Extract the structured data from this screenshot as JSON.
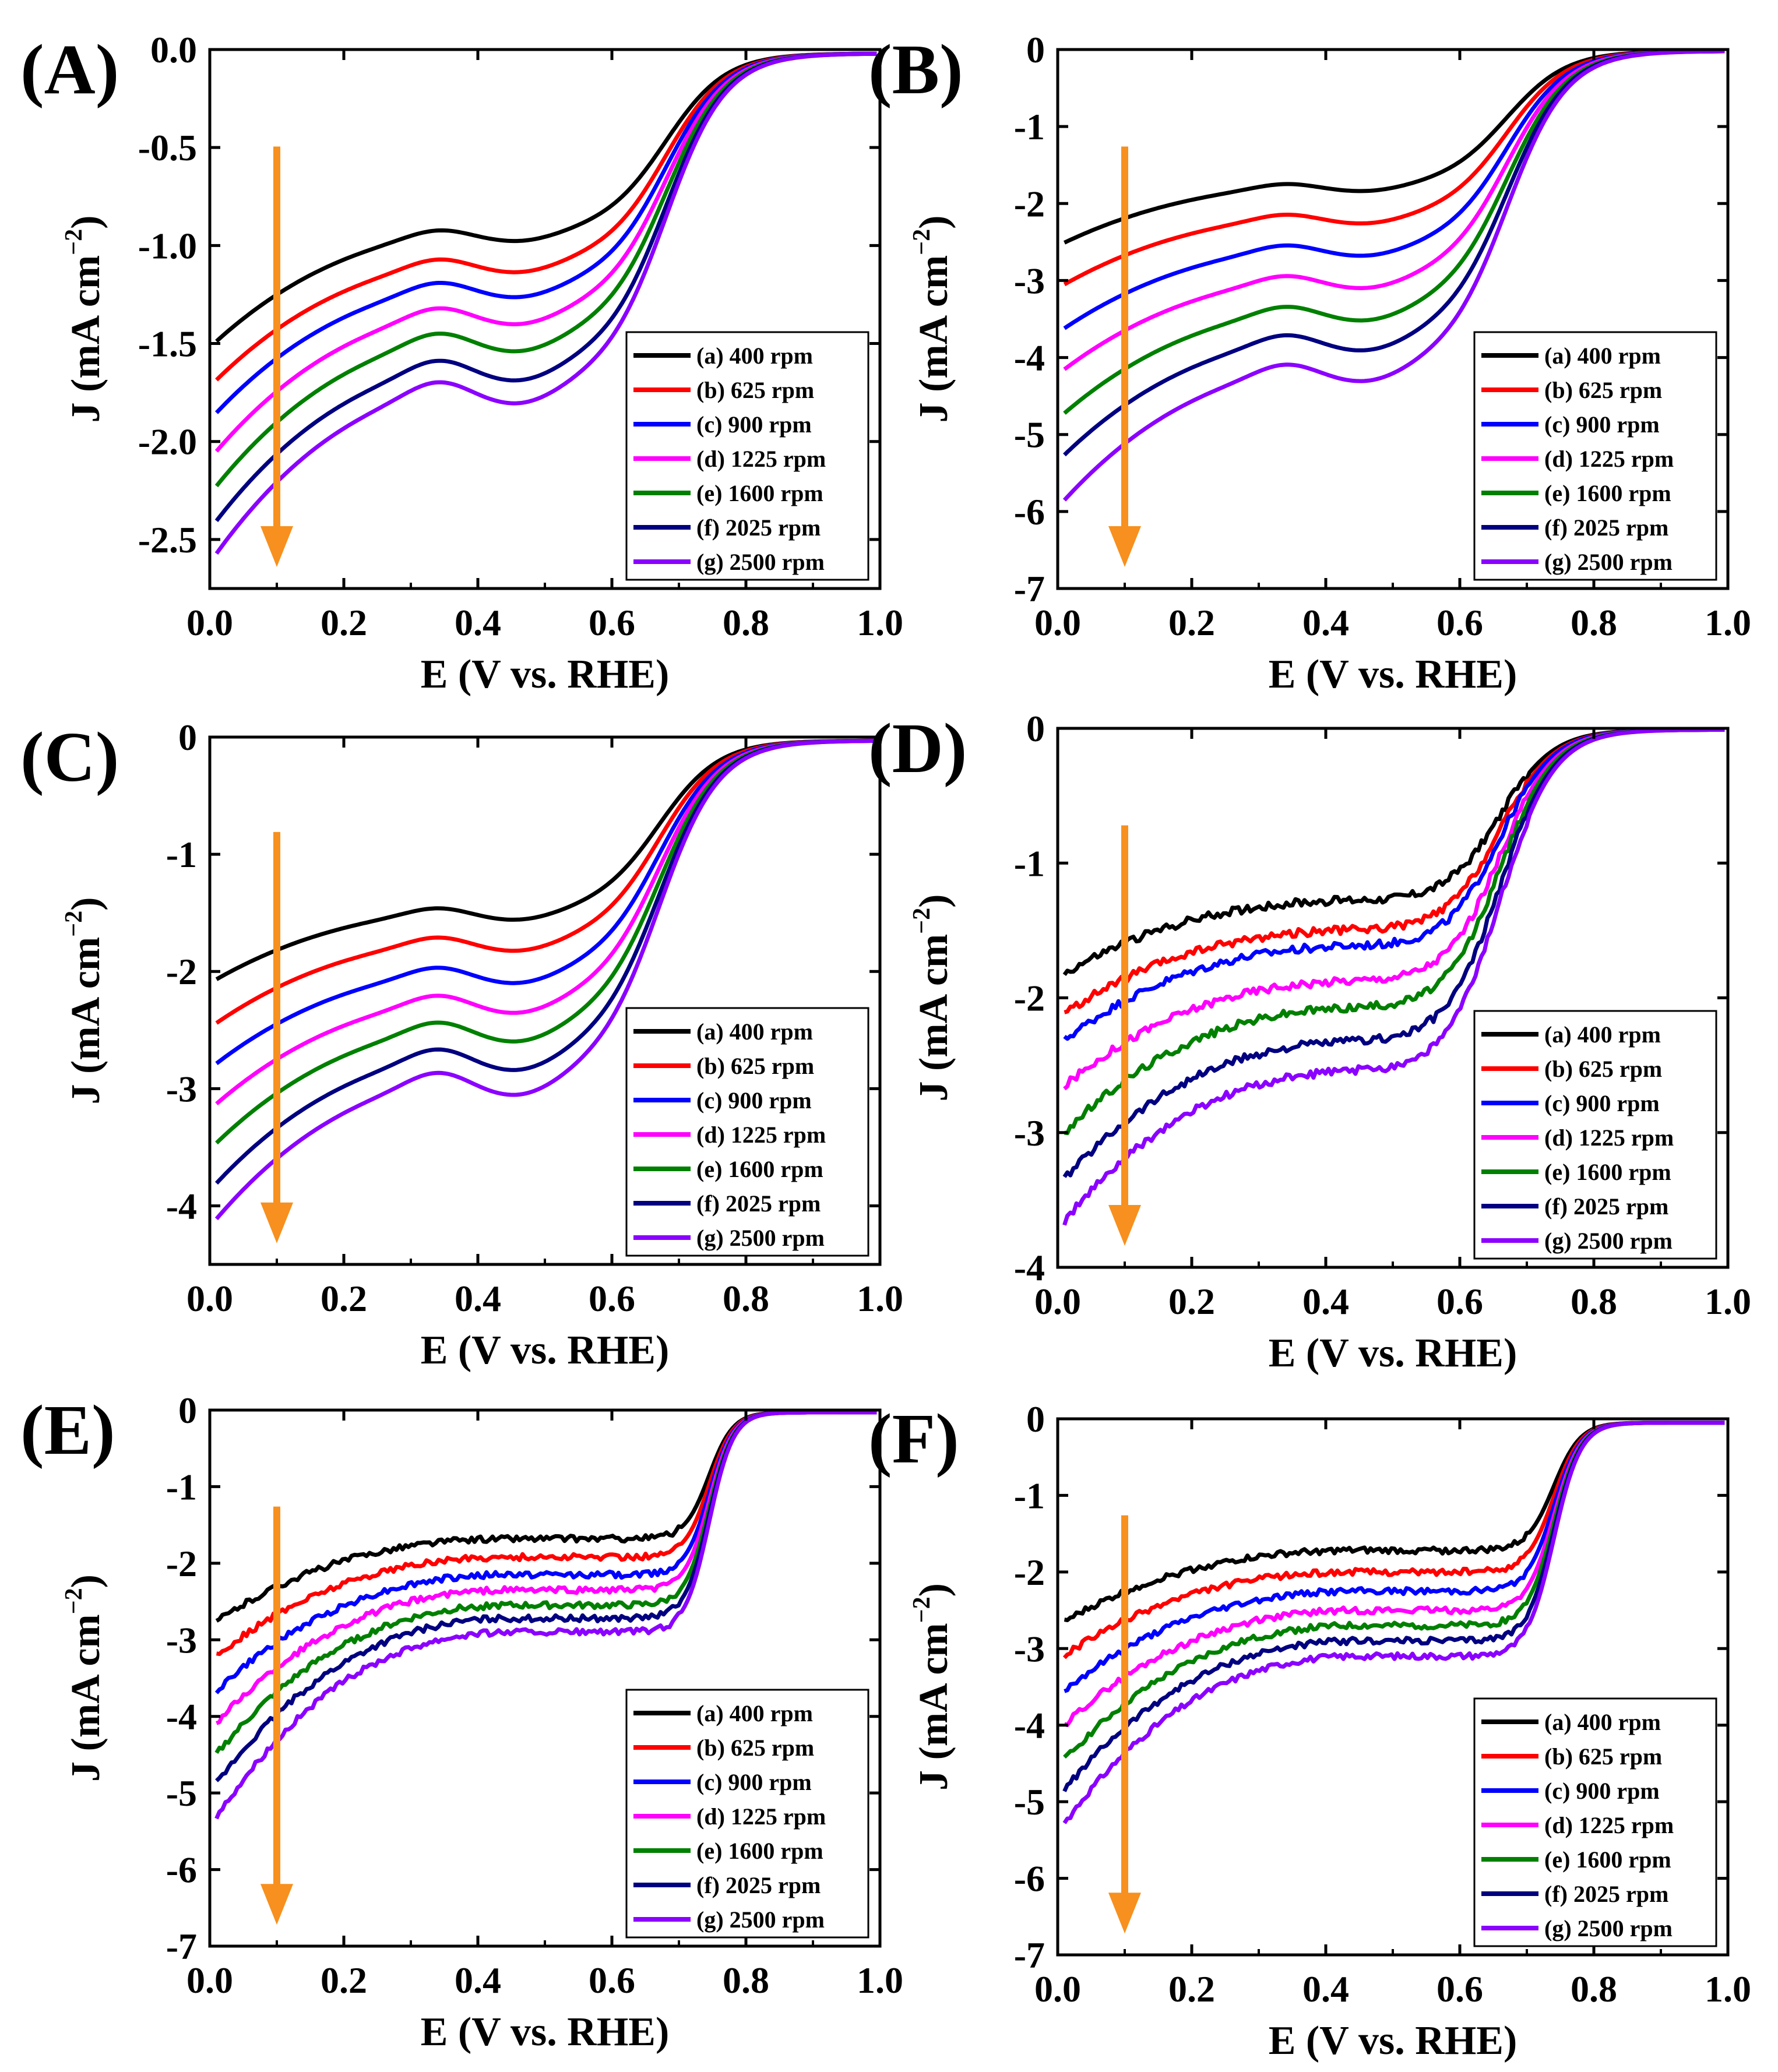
{
  "figure": {
    "arrow_color": "#F7901E",
    "legend_entries": [
      "(a) 400 rpm",
      "(b) 625 rpm",
      "(c) 900 rpm",
      "(d) 1225 rpm",
      "(e) 1600 rpm",
      "(f)  2025 rpm",
      "(g) 2500 rpm"
    ],
    "series_colors": [
      "#000000",
      "#FF0000",
      "#0000FF",
      "#FF00FF",
      "#008000",
      "#000080",
      "#8B00FF"
    ]
  },
  "chart_data": [
    {
      "type": "line",
      "panel": "(A)",
      "xlabel": "E (V vs. RHE)",
      "ylabel_main": "J (mA cm",
      "ylabel_sup": "−2",
      "ylabel_tail": ")",
      "xlim": [
        0.0,
        1.0
      ],
      "ylim": [
        -2.75,
        0.0
      ],
      "xticks": [
        0.0,
        0.2,
        0.4,
        0.6,
        0.8,
        1.0
      ],
      "xtick_labels": [
        "0.0",
        "0.2",
        "0.4",
        "0.6",
        "0.8",
        "1.0"
      ],
      "yticks": [
        0.0,
        -0.5,
        -1.0,
        -1.5,
        -2.0,
        -2.5
      ],
      "ytick_labels": [
        "0.0",
        "-0.5",
        "-1.0",
        "-1.5",
        "-2.0",
        "-2.5"
      ],
      "legend_position": "lower-right",
      "onset_v": 0.68,
      "width": 0.045,
      "hump": 0.07,
      "noise": 0.0,
      "annotation": "orange arrow pointing down (increasing rotation rate)",
      "series": [
        {
          "name": "(a) 400 rpm",
          "color": "#000000",
          "j_start": -1.52,
          "j_plateau": -0.92,
          "j_end": -0.02
        },
        {
          "name": "(b) 625 rpm",
          "color": "#FF0000",
          "j_start": -1.72,
          "j_plateau": -1.07,
          "j_end": -0.02
        },
        {
          "name": "(c) 900 rpm",
          "color": "#0000FF",
          "j_start": -1.89,
          "j_plateau": -1.19,
          "j_end": -0.02
        },
        {
          "name": "(d) 1225 rpm",
          "color": "#FF00FF",
          "j_start": -2.09,
          "j_plateau": -1.32,
          "j_end": -0.02
        },
        {
          "name": "(e) 1600 rpm",
          "color": "#008000",
          "j_start": -2.27,
          "j_plateau": -1.45,
          "j_end": -0.02
        },
        {
          "name": "(f)  2025 rpm",
          "color": "#000080",
          "j_start": -2.45,
          "j_plateau": -1.59,
          "j_end": -0.02
        },
        {
          "name": "(g) 2500 rpm",
          "color": "#8B00FF",
          "j_start": -2.62,
          "j_plateau": -1.7,
          "j_end": -0.02
        }
      ]
    },
    {
      "type": "line",
      "panel": "(B)",
      "xlabel": "E (V vs. RHE)",
      "ylabel_main": "J (mA cm",
      "ylabel_sup": "−2",
      "ylabel_tail": ")",
      "xlim": [
        0.0,
        1.0
      ],
      "ylim": [
        -7.0,
        0.0
      ],
      "xticks": [
        0.0,
        0.2,
        0.4,
        0.6,
        0.8,
        1.0
      ],
      "xtick_labels": [
        "0.0",
        "0.2",
        "0.4",
        "0.6",
        "0.8",
        "1.0"
      ],
      "yticks": [
        0,
        -1,
        -2,
        -3,
        -4,
        -5,
        -6,
        -7
      ],
      "ytick_labels": [
        "0",
        "-1",
        "-2",
        "-3",
        "-4",
        "-5",
        "-6",
        "-7"
      ],
      "legend_position": "lower-right",
      "onset_v": 0.67,
      "width": 0.045,
      "hump": 0.06,
      "noise": 0.0,
      "annotation": "orange arrow pointing down (increasing rotation rate)",
      "series": [
        {
          "name": "(a) 400 rpm",
          "color": "#000000",
          "j_start": -2.55,
          "j_plateau": -1.75,
          "j_end": -0.02
        },
        {
          "name": "(b) 625 rpm",
          "color": "#FF0000",
          "j_start": -3.1,
          "j_plateau": -2.15,
          "j_end": -0.02
        },
        {
          "name": "(c) 900 rpm",
          "color": "#0000FF",
          "j_start": -3.68,
          "j_plateau": -2.55,
          "j_end": -0.02
        },
        {
          "name": "(d) 1225 rpm",
          "color": "#FF00FF",
          "j_start": -4.22,
          "j_plateau": -2.95,
          "j_end": -0.02
        },
        {
          "name": "(e) 1600 rpm",
          "color": "#008000",
          "j_start": -4.8,
          "j_plateau": -3.35,
          "j_end": -0.02
        },
        {
          "name": "(f)  2025 rpm",
          "color": "#000080",
          "j_start": -5.35,
          "j_plateau": -3.72,
          "j_end": -0.02
        },
        {
          "name": "(g) 2500 rpm",
          "color": "#8B00FF",
          "j_start": -5.95,
          "j_plateau": -4.1,
          "j_end": -0.02
        }
      ]
    },
    {
      "type": "line",
      "panel": "(C)",
      "xlabel": "E (V vs. RHE)",
      "ylabel_main": "J (mA cm",
      "ylabel_sup": "−2",
      "ylabel_tail": ")",
      "xlim": [
        0.0,
        1.0
      ],
      "ylim": [
        -4.5,
        0.0
      ],
      "xticks": [
        0.0,
        0.2,
        0.4,
        0.6,
        0.8,
        1.0
      ],
      "xtick_labels": [
        "0.0",
        "0.2",
        "0.4",
        "0.6",
        "0.8",
        "1.0"
      ],
      "yticks": [
        0,
        -1,
        -2,
        -3,
        -4
      ],
      "ytick_labels": [
        "0",
        "-1",
        "-2",
        "-3",
        "-4"
      ],
      "legend_position": "lower-right",
      "onset_v": 0.67,
      "width": 0.045,
      "hump": 0.07,
      "noise": 0.0,
      "annotation": "orange arrow pointing down (increasing rotation rate)",
      "series": [
        {
          "name": "(a) 400 rpm",
          "color": "#000000",
          "j_start": -2.1,
          "j_plateau": -1.47,
          "j_end": -0.03
        },
        {
          "name": "(b) 625 rpm",
          "color": "#FF0000",
          "j_start": -2.48,
          "j_plateau": -1.72,
          "j_end": -0.03
        },
        {
          "name": "(c) 900 rpm",
          "color": "#0000FF",
          "j_start": -2.83,
          "j_plateau": -1.98,
          "j_end": -0.03
        },
        {
          "name": "(d) 1225 rpm",
          "color": "#FF00FF",
          "j_start": -3.18,
          "j_plateau": -2.22,
          "j_end": -0.03
        },
        {
          "name": "(e) 1600 rpm",
          "color": "#008000",
          "j_start": -3.52,
          "j_plateau": -2.45,
          "j_end": -0.03
        },
        {
          "name": "(f)  2025 rpm",
          "color": "#000080",
          "j_start": -3.87,
          "j_plateau": -2.68,
          "j_end": -0.03
        },
        {
          "name": "(g) 2500 rpm",
          "color": "#8B00FF",
          "j_start": -4.18,
          "j_plateau": -2.88,
          "j_end": -0.03
        }
      ]
    },
    {
      "type": "line",
      "panel": "(D)",
      "xlabel": "E (V vs. RHE)",
      "ylabel_main": "J (mA cm",
      "ylabel_sup": "−2",
      "ylabel_tail": ")",
      "xlim": [
        0.0,
        1.0
      ],
      "ylim": [
        -4.0,
        0.0
      ],
      "xticks": [
        0.0,
        0.2,
        0.4,
        0.6,
        0.8,
        1.0
      ],
      "xtick_labels": [
        "0.0",
        "0.2",
        "0.4",
        "0.6",
        "0.8",
        "1.0"
      ],
      "yticks": [
        0,
        -1,
        -2,
        -3,
        -4
      ],
      "ytick_labels": [
        "0",
        "-1",
        "-2",
        "-3",
        "-4"
      ],
      "legend_position": "lower-right",
      "onset_v": 0.66,
      "width": 0.04,
      "hump": 0.0,
      "noise": 0.03,
      "annotation": "orange arrow pointing down (increasing rotation rate)",
      "series": [
        {
          "name": "(a) 400 rpm",
          "color": "#000000",
          "j_start": -1.85,
          "j_plateau": -1.28,
          "j_end": -0.01
        },
        {
          "name": "(b) 625 rpm",
          "color": "#FF0000",
          "j_start": -2.15,
          "j_plateau": -1.5,
          "j_end": -0.01
        },
        {
          "name": "(c) 900 rpm",
          "color": "#0000FF",
          "j_start": -2.35,
          "j_plateau": -1.62,
          "j_end": -0.01
        },
        {
          "name": "(d) 1225 rpm",
          "color": "#FF00FF",
          "j_start": -2.7,
          "j_plateau": -1.88,
          "j_end": -0.01
        },
        {
          "name": "(e) 1600 rpm",
          "color": "#008000",
          "j_start": -3.05,
          "j_plateau": -2.08,
          "j_end": -0.01
        },
        {
          "name": "(f)  2025 rpm",
          "color": "#000080",
          "j_start": -3.4,
          "j_plateau": -2.33,
          "j_end": -0.01
        },
        {
          "name": "(g) 2500 rpm",
          "color": "#8B00FF",
          "j_start": -3.72,
          "j_plateau": -2.55,
          "j_end": -0.01
        }
      ]
    },
    {
      "type": "line",
      "panel": "(E)",
      "xlabel": "E (V vs. RHE)",
      "ylabel_main": "J (mA cm",
      "ylabel_sup": "−2",
      "ylabel_tail": ")",
      "xlim": [
        0.0,
        1.0
      ],
      "ylim": [
        -7.0,
        0.0
      ],
      "xticks": [
        0.0,
        0.2,
        0.4,
        0.6,
        0.8,
        1.0
      ],
      "xtick_labels": [
        "0.0",
        "0.2",
        "0.4",
        "0.6",
        "0.8",
        "1.0"
      ],
      "yticks": [
        0,
        -1,
        -2,
        -3,
        -4,
        -5,
        -6,
        -7
      ],
      "ytick_labels": [
        "0",
        "-1",
        "-2",
        "-3",
        "-4",
        "-5",
        "-6",
        "-7"
      ],
      "legend_position": "lower-right",
      "onset_v": 0.745,
      "width": 0.018,
      "hump": 0.0,
      "noise": 0.04,
      "annotation": "orange arrow pointing down (increasing rotation rate)",
      "series": [
        {
          "name": "(a) 400 rpm",
          "color": "#000000",
          "j_start": -2.82,
          "j_plateau": -1.68,
          "j_end": -0.03
        },
        {
          "name": "(b) 625 rpm",
          "color": "#FF0000",
          "j_start": -3.28,
          "j_plateau": -1.92,
          "j_end": -0.03
        },
        {
          "name": "(c) 900 rpm",
          "color": "#0000FF",
          "j_start": -3.75,
          "j_plateau": -2.15,
          "j_end": -0.03
        },
        {
          "name": "(d) 1225 rpm",
          "color": "#FF00FF",
          "j_start": -4.18,
          "j_plateau": -2.35,
          "j_end": -0.03
        },
        {
          "name": "(e) 1600 rpm",
          "color": "#008000",
          "j_start": -4.6,
          "j_plateau": -2.55,
          "j_end": -0.03
        },
        {
          "name": "(f)  2025 rpm",
          "color": "#000080",
          "j_start": -5.0,
          "j_plateau": -2.72,
          "j_end": -0.03
        },
        {
          "name": "(g) 2500 rpm",
          "color": "#8B00FF",
          "j_start": -5.45,
          "j_plateau": -2.9,
          "j_end": -0.03
        }
      ]
    },
    {
      "type": "line",
      "panel": "(F)",
      "xlabel": "E (V vs. RHE)",
      "ylabel_main": "J (mA cm",
      "ylabel_sup": "−2",
      "ylabel_tail": ")",
      "xlim": [
        0.0,
        1.0
      ],
      "ylim": [
        -7.0,
        0.0
      ],
      "xticks": [
        0.0,
        0.2,
        0.4,
        0.6,
        0.8,
        1.0
      ],
      "xtick_labels": [
        "0.0",
        "0.2",
        "0.4",
        "0.6",
        "0.8",
        "1.0"
      ],
      "yticks": [
        0,
        -1,
        -2,
        -3,
        -4,
        -5,
        -6,
        -7
      ],
      "ytick_labels": [
        "0",
        "-1",
        "-2",
        "-3",
        "-4",
        "-5",
        "-6",
        "-7"
      ],
      "legend_position": "lower-right",
      "onset_v": 0.74,
      "width": 0.02,
      "hump": 0.0,
      "noise": 0.04,
      "annotation": "orange arrow pointing down (increasing rotation rate)",
      "series": [
        {
          "name": "(a) 400 rpm",
          "color": "#000000",
          "j_start": -2.7,
          "j_plateau": -1.72,
          "j_end": -0.05
        },
        {
          "name": "(b) 625 rpm",
          "color": "#FF0000",
          "j_start": -3.15,
          "j_plateau": -2.0,
          "j_end": -0.05
        },
        {
          "name": "(c) 900 rpm",
          "color": "#0000FF",
          "j_start": -3.62,
          "j_plateau": -2.25,
          "j_end": -0.05
        },
        {
          "name": "(d) 1225 rpm",
          "color": "#FF00FF",
          "j_start": -4.08,
          "j_plateau": -2.5,
          "j_end": -0.05
        },
        {
          "name": "(e) 1600 rpm",
          "color": "#008000",
          "j_start": -4.55,
          "j_plateau": -2.7,
          "j_end": -0.05
        },
        {
          "name": "(f)  2025 rpm",
          "color": "#000080",
          "j_start": -4.95,
          "j_plateau": -2.9,
          "j_end": -0.05
        },
        {
          "name": "(g) 2500 rpm",
          "color": "#8B00FF",
          "j_start": -5.4,
          "j_plateau": -3.1,
          "j_end": -0.05
        }
      ]
    }
  ]
}
